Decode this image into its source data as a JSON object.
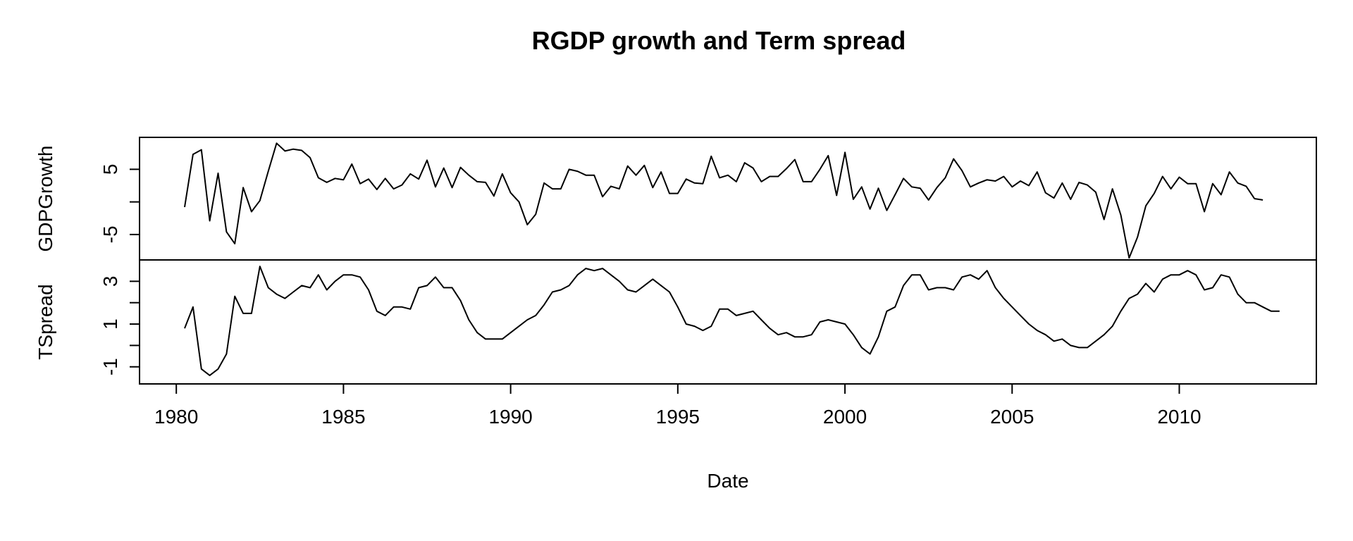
{
  "chart_data": {
    "type": "line",
    "title": "RGDP growth and Term spread",
    "xlabel": "Date",
    "xlim": [
      1978.9,
      2014.1
    ],
    "x_ticks": [
      "1980",
      "1985",
      "1990",
      "1995",
      "2000",
      "2005",
      "2010"
    ],
    "x_start": 1980.25,
    "x_step": 0.25,
    "grid": false,
    "legend": "none",
    "color": "#000000",
    "panels": [
      {
        "name": "GDPGrowth",
        "ylabel": "GDPGrowth",
        "ylim": [
          -8.9,
          9.9
        ],
        "y_ticks": [
          "-5",
          "5"
        ],
        "values": [
          -0.8,
          7.3,
          8.0,
          -2.9,
          4.4,
          -4.6,
          -6.4,
          2.2,
          -1.5,
          0.2,
          4.7,
          9.0,
          7.8,
          8.1,
          7.9,
          6.8,
          3.7,
          3.0,
          3.6,
          3.4,
          5.8,
          2.8,
          3.5,
          1.9,
          3.6,
          2.0,
          2.6,
          4.3,
          3.5,
          6.4,
          2.3,
          5.2,
          2.2,
          5.3,
          4.1,
          3.1,
          3.0,
          0.9,
          4.3,
          1.4,
          0.0,
          -3.5,
          -1.9,
          2.9,
          2.0,
          2.0,
          5.0,
          4.7,
          4.1,
          4.1,
          0.8,
          2.4,
          2.0,
          5.5,
          4.1,
          5.6,
          2.2,
          4.6,
          1.3,
          1.3,
          3.5,
          2.9,
          2.8,
          7.0,
          3.7,
          4.1,
          3.1,
          6.0,
          5.2,
          3.1,
          3.9,
          3.9,
          5.1,
          6.5,
          3.1,
          3.1,
          5.0,
          7.1,
          1.0,
          7.6,
          0.4,
          2.3,
          -1.1,
          2.1,
          -1.3,
          1.1,
          3.6,
          2.3,
          2.1,
          0.3,
          2.2,
          3.7,
          6.6,
          4.8,
          2.3,
          2.9,
          3.4,
          3.2,
          3.9,
          2.3,
          3.2,
          2.5,
          4.6,
          1.4,
          0.6,
          2.9,
          0.4,
          3.0,
          2.6,
          1.5,
          -2.7,
          2.0,
          -2.0,
          -8.6,
          -5.4,
          -0.6,
          1.3,
          3.9,
          2.0,
          3.8,
          2.8,
          2.8,
          -1.5,
          2.8,
          1.1,
          4.6,
          2.9,
          2.4,
          0.5,
          0.3
        ]
      },
      {
        "name": "TSpread",
        "ylabel": "TSpread",
        "ylim": [
          -1.8,
          4.0
        ],
        "y_ticks": [
          "-1",
          "1",
          "3"
        ],
        "values": [
          0.8,
          1.8,
          -1.1,
          -1.4,
          -1.1,
          -0.4,
          2.3,
          1.5,
          1.5,
          3.7,
          2.7,
          2.4,
          2.2,
          2.5,
          2.8,
          2.7,
          3.3,
          2.6,
          3.0,
          3.3,
          3.3,
          3.2,
          2.6,
          1.6,
          1.4,
          1.8,
          1.8,
          1.7,
          2.7,
          2.8,
          3.2,
          2.7,
          2.7,
          2.1,
          1.2,
          0.6,
          0.3,
          0.3,
          0.3,
          0.6,
          0.9,
          1.2,
          1.4,
          1.9,
          2.5,
          2.6,
          2.8,
          3.3,
          3.6,
          3.5,
          3.6,
          3.3,
          3.0,
          2.6,
          2.5,
          2.8,
          3.1,
          2.8,
          2.5,
          1.8,
          1.0,
          0.9,
          0.7,
          0.9,
          1.7,
          1.7,
          1.4,
          1.5,
          1.6,
          1.2,
          0.8,
          0.5,
          0.6,
          0.4,
          0.4,
          0.5,
          1.1,
          1.2,
          1.1,
          1.0,
          0.5,
          -0.1,
          -0.4,
          0.4,
          1.6,
          1.8,
          2.8,
          3.3,
          3.3,
          2.6,
          2.7,
          2.7,
          2.6,
          3.2,
          3.3,
          3.1,
          3.5,
          2.7,
          2.2,
          1.8,
          1.4,
          1.0,
          0.7,
          0.5,
          0.2,
          0.3,
          0.0,
          -0.1,
          -0.1,
          0.2,
          0.5,
          0.9,
          1.6,
          2.2,
          2.4,
          2.9,
          2.5,
          3.1,
          3.3,
          3.3,
          3.5,
          3.3,
          2.6,
          2.7,
          3.3,
          3.2,
          2.4,
          2.0,
          2.0,
          1.8,
          1.6,
          1.6
        ]
      }
    ]
  }
}
